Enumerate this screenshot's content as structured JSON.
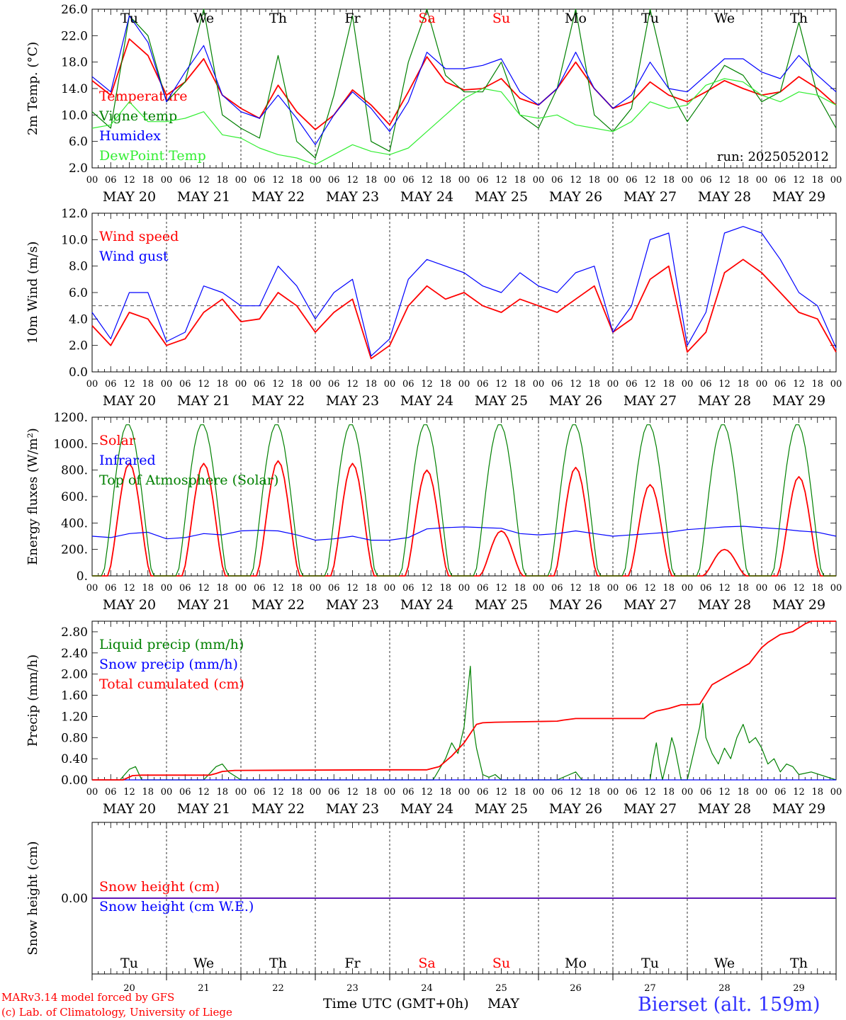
{
  "chart_data": [
    {
      "type": "line",
      "ylabel": "2m Temp. (°C)",
      "ylim": [
        2.0,
        26.0
      ],
      "yticks": [
        "2.0",
        "6.0",
        "10.0",
        "14.0",
        "18.0",
        "22.0",
        "26.0"
      ],
      "annotation": "run: 2025052012",
      "legend": "top-left",
      "series": [
        {
          "name": "Temperature",
          "color": "#ff0000",
          "x": [
            0,
            6,
            12,
            18,
            24,
            30,
            36,
            42,
            48,
            54,
            60,
            66,
            72,
            78,
            84,
            90,
            96,
            102,
            108,
            114,
            120,
            126,
            132,
            138,
            144,
            150,
            156,
            162,
            168,
            174,
            180,
            186,
            192,
            198,
            204,
            210,
            216,
            222,
            228,
            234,
            240
          ],
          "values": [
            15.2,
            13.0,
            21.5,
            19.0,
            13.0,
            15.0,
            18.5,
            13.0,
            11.0,
            9.5,
            14.5,
            10.5,
            7.8,
            10.0,
            13.8,
            11.5,
            8.5,
            13.5,
            18.8,
            15.0,
            13.8,
            14.0,
            15.5,
            12.5,
            11.5,
            14.0,
            18.0,
            14.0,
            11.0,
            12.0,
            15.0,
            13.0,
            12.0,
            13.5,
            15.2,
            14.0,
            13.0,
            13.5,
            15.8,
            14.0,
            11.5
          ]
        },
        {
          "name": "Vigne temp",
          "color": "#008000",
          "x": [
            0,
            6,
            12,
            18,
            24,
            30,
            36,
            42,
            48,
            54,
            60,
            66,
            72,
            78,
            84,
            90,
            96,
            102,
            108,
            114,
            120,
            126,
            132,
            138,
            144,
            150,
            156,
            162,
            168,
            174,
            180,
            186,
            192,
            198,
            204,
            210,
            216,
            222,
            228,
            234,
            240
          ],
          "values": [
            10.5,
            8.0,
            25.0,
            22.0,
            12.0,
            15.0,
            26.0,
            10.0,
            8.0,
            6.5,
            19.0,
            6.0,
            3.5,
            13.0,
            25.0,
            6.0,
            4.5,
            18.0,
            26.0,
            16.0,
            13.5,
            13.5,
            18.0,
            10.0,
            8.0,
            14.0,
            26.0,
            10.0,
            7.5,
            11.0,
            26.0,
            14.0,
            9.0,
            13.0,
            17.5,
            16.0,
            12.0,
            13.5,
            24.0,
            13.0,
            8.0
          ]
        },
        {
          "name": "Humidex",
          "color": "#0000ff",
          "x": [
            0,
            6,
            12,
            18,
            24,
            30,
            36,
            42,
            48,
            54,
            60,
            66,
            72,
            78,
            84,
            90,
            96,
            102,
            108,
            114,
            120,
            126,
            132,
            138,
            144,
            150,
            156,
            162,
            168,
            174,
            180,
            186,
            192,
            198,
            204,
            210,
            216,
            222,
            228,
            234,
            240
          ],
          "values": [
            15.8,
            13.5,
            25.0,
            21.0,
            12.0,
            16.5,
            20.5,
            13.0,
            10.5,
            9.5,
            13.0,
            9.5,
            5.5,
            10.0,
            13.5,
            11.0,
            7.5,
            12.0,
            19.5,
            17.0,
            17.0,
            17.5,
            18.5,
            13.5,
            11.5,
            14.0,
            19.5,
            14.0,
            11.0,
            13.0,
            18.0,
            14.0,
            13.5,
            16.0,
            18.5,
            18.5,
            16.5,
            15.5,
            19.0,
            16.0,
            13.5
          ]
        },
        {
          "name": "DewPoint Temp",
          "color": "#33ee33",
          "x": [
            0,
            6,
            12,
            18,
            24,
            30,
            36,
            42,
            48,
            54,
            60,
            66,
            72,
            78,
            84,
            90,
            96,
            102,
            108,
            114,
            120,
            126,
            132,
            138,
            144,
            150,
            156,
            162,
            168,
            174,
            180,
            186,
            192,
            198,
            204,
            210,
            216,
            222,
            228,
            234,
            240
          ],
          "values": [
            8.0,
            8.5,
            12.0,
            9.0,
            9.0,
            9.5,
            10.5,
            7.0,
            6.5,
            5.0,
            4.0,
            3.5,
            2.5,
            4.0,
            5.5,
            4.5,
            4.0,
            5.0,
            7.5,
            10.0,
            12.5,
            14.0,
            13.5,
            10.0,
            9.5,
            10.0,
            8.5,
            8.0,
            7.5,
            9.0,
            12.0,
            11.0,
            11.5,
            14.5,
            15.5,
            15.0,
            13.0,
            12.0,
            13.5,
            13.0,
            11.5
          ]
        }
      ]
    },
    {
      "type": "line",
      "ylabel": "10m Wind (m/s)",
      "ylim": [
        0.0,
        12.0
      ],
      "yticks": [
        "0.0",
        "2.0",
        "4.0",
        "6.0",
        "8.0",
        "10.0",
        "12.0"
      ],
      "reference_line": 5.0,
      "legend": "top-left",
      "series": [
        {
          "name": "Wind speed",
          "color": "#ff0000",
          "x": [
            0,
            6,
            12,
            18,
            24,
            30,
            36,
            42,
            48,
            54,
            60,
            66,
            72,
            78,
            84,
            90,
            96,
            102,
            108,
            114,
            120,
            126,
            132,
            138,
            144,
            150,
            156,
            162,
            168,
            174,
            180,
            186,
            192,
            198,
            204,
            210,
            216,
            222,
            228,
            234,
            240
          ],
          "values": [
            3.5,
            2.0,
            4.5,
            4.0,
            2.0,
            2.5,
            4.5,
            5.5,
            3.8,
            4.0,
            6.0,
            5.0,
            3.0,
            4.5,
            5.5,
            1.0,
            2.0,
            5.0,
            6.5,
            5.5,
            6.0,
            5.0,
            4.5,
            5.5,
            5.0,
            4.5,
            5.5,
            6.5,
            3.0,
            4.0,
            7.0,
            8.0,
            1.5,
            3.0,
            7.5,
            8.5,
            7.5,
            6.0,
            4.5,
            4.0,
            1.5
          ]
        },
        {
          "name": "Wind gust",
          "color": "#0000ff",
          "x": [
            0,
            6,
            12,
            18,
            24,
            30,
            36,
            42,
            48,
            54,
            60,
            66,
            72,
            78,
            84,
            90,
            96,
            102,
            108,
            114,
            120,
            126,
            132,
            138,
            144,
            150,
            156,
            162,
            168,
            174,
            180,
            186,
            192,
            198,
            204,
            210,
            216,
            222,
            228,
            234,
            240
          ],
          "values": [
            4.5,
            2.5,
            6.0,
            6.0,
            2.3,
            3.0,
            6.5,
            6.0,
            5.0,
            5.0,
            8.0,
            6.5,
            4.0,
            6.0,
            7.0,
            1.2,
            2.5,
            7.0,
            8.5,
            8.0,
            7.5,
            6.5,
            6.0,
            7.5,
            6.5,
            6.0,
            7.5,
            8.0,
            3.0,
            5.0,
            10.0,
            10.5,
            2.0,
            4.5,
            10.5,
            11.0,
            10.5,
            8.5,
            6.0,
            5.0,
            1.8
          ]
        }
      ]
    },
    {
      "type": "line",
      "ylabel": "Energy fluxes (W/m²)",
      "ylim": [
        0,
        1200
      ],
      "yticks": [
        "0.",
        "200.",
        "400.",
        "600.",
        "800.",
        "1000.",
        "1200."
      ],
      "legend": "top-left",
      "series": [
        {
          "name": "Solar",
          "color": "#ff0000",
          "peaks": [
            850,
            850,
            870,
            850,
            800,
            340,
            820,
            690,
            200,
            750
          ]
        },
        {
          "name": "Infrared",
          "color": "#0000ff",
          "x": [
            0,
            6,
            12,
            18,
            24,
            30,
            36,
            42,
            48,
            54,
            60,
            66,
            72,
            78,
            84,
            90,
            96,
            102,
            108,
            114,
            120,
            126,
            132,
            138,
            144,
            150,
            156,
            162,
            168,
            174,
            180,
            186,
            192,
            198,
            204,
            210,
            216,
            222,
            228,
            234,
            240
          ],
          "values": [
            300,
            290,
            320,
            330,
            280,
            290,
            320,
            310,
            340,
            345,
            340,
            310,
            270,
            280,
            300,
            270,
            270,
            290,
            355,
            365,
            370,
            365,
            360,
            320,
            310,
            320,
            340,
            320,
            300,
            310,
            320,
            330,
            350,
            360,
            370,
            375,
            365,
            355,
            340,
            330,
            300
          ]
        },
        {
          "name": "Top of Atmosphere (Solar)",
          "color": "#008000",
          "peak": 1150
        }
      ]
    },
    {
      "type": "line",
      "ylabel": "Precip (mm/h)",
      "ylim": [
        0.0,
        3.0
      ],
      "yticks": [
        "0.00",
        "0.40",
        "0.80",
        "1.20",
        "1.60",
        "2.00",
        "2.40",
        "2.80"
      ],
      "legend": "top-left",
      "series": [
        {
          "name": "Liquid precip (mm/h)",
          "color": "#008000",
          "x": [
            0,
            9,
            12,
            14,
            16,
            24,
            36,
            40,
            42,
            44,
            48,
            96,
            110,
            114,
            116,
            118,
            120,
            122,
            123,
            124,
            126,
            128,
            130,
            132,
            150,
            154,
            156,
            158,
            168,
            180,
            181,
            182,
            183,
            184,
            186,
            187,
            188,
            189,
            190,
            192,
            196,
            197,
            198,
            200,
            202,
            204,
            206,
            208,
            210,
            212,
            214,
            216,
            218,
            220,
            222,
            224,
            226,
            228,
            232,
            240
          ],
          "values": [
            0,
            0,
            0.2,
            0.25,
            0,
            0,
            0,
            0.25,
            0.3,
            0.15,
            0,
            0,
            0,
            0.4,
            0.7,
            0.5,
            1.0,
            2.15,
            1.0,
            0.6,
            0.1,
            0.05,
            0.1,
            0,
            0,
            0.1,
            0.15,
            0,
            0,
            0,
            0.4,
            0.7,
            0.3,
            0,
            0.5,
            0.8,
            0.6,
            0.3,
            0,
            0,
            1.0,
            1.45,
            0.8,
            0.5,
            0.3,
            0.6,
            0.4,
            0.8,
            1.05,
            0.7,
            0.8,
            0.6,
            0.3,
            0.4,
            0.15,
            0.3,
            0.25,
            0.1,
            0.15,
            0
          ]
        },
        {
          "name": "Snow precip (mm/h)",
          "color": "#0000ff",
          "x": [
            0,
            240
          ],
          "values": [
            0,
            0
          ]
        },
        {
          "name": "Total cumulated (cm)",
          "color": "#ff0000",
          "x": [
            0,
            10,
            13,
            16,
            38,
            40,
            42,
            46,
            48,
            96,
            108,
            112,
            116,
            120,
            124,
            126,
            130,
            140,
            150,
            152,
            156,
            170,
            178,
            180,
            182,
            186,
            190,
            192,
            196,
            200,
            206,
            212,
            216,
            218,
            222,
            226,
            230,
            232,
            240
          ],
          "values": [
            0,
            0,
            0.08,
            0.09,
            0.09,
            0.12,
            0.16,
            0.18,
            0.18,
            0.19,
            0.19,
            0.25,
            0.45,
            0.7,
            1.05,
            1.08,
            1.09,
            1.1,
            1.11,
            1.13,
            1.16,
            1.16,
            1.16,
            1.25,
            1.3,
            1.35,
            1.42,
            1.42,
            1.43,
            1.8,
            2.0,
            2.2,
            2.5,
            2.6,
            2.75,
            2.8,
            2.95,
            3.0,
            3.0
          ]
        }
      ]
    },
    {
      "type": "line",
      "ylabel": "Snow height (cm)",
      "ylim": [
        -1.0,
        1.0
      ],
      "yticks": [
        "0.00"
      ],
      "legend": "top-left",
      "series": [
        {
          "name": "Snow height (cm)",
          "color": "#ff0000",
          "x": [
            0,
            240
          ],
          "values": [
            0,
            0
          ]
        },
        {
          "name": "Snow height (cm W.E.)",
          "color": "#0000ff",
          "x": [
            0,
            240
          ],
          "values": [
            0,
            0
          ]
        }
      ]
    }
  ],
  "x_axis": {
    "hour_ticks": [
      "00",
      "06",
      "12",
      "18"
    ],
    "end_tick": "00",
    "dates": [
      "MAY 20",
      "MAY 21",
      "MAY 22",
      "MAY 23",
      "MAY 24",
      "MAY 25",
      "MAY 26",
      "MAY 27",
      "MAY 28",
      "MAY 29"
    ],
    "days": [
      {
        "label": "Tu",
        "color": "#000000"
      },
      {
        "label": "We",
        "color": "#000000"
      },
      {
        "label": "Th",
        "color": "#000000"
      },
      {
        "label": "Fr",
        "color": "#000000"
      },
      {
        "label": "Sa",
        "color": "#ff0000"
      },
      {
        "label": "Su",
        "color": "#ff0000"
      },
      {
        "label": "Mo",
        "color": "#000000"
      },
      {
        "label": "Tu",
        "color": "#000000"
      },
      {
        "label": "We",
        "color": "#000000"
      },
      {
        "label": "Th",
        "color": "#000000"
      }
    ],
    "day_numbers": [
      "20",
      "21",
      "22",
      "23",
      "24",
      "25",
      "26",
      "27",
      "28",
      "29"
    ],
    "title": "Time UTC (GMT+0h)",
    "month": "MAY"
  },
  "footer": {
    "model_line": "MARv3.14 model forced by GFS",
    "copyright_line": "(c) Lab. of Climatology, University of Liege",
    "station": "Bierset (alt. 159m)"
  }
}
